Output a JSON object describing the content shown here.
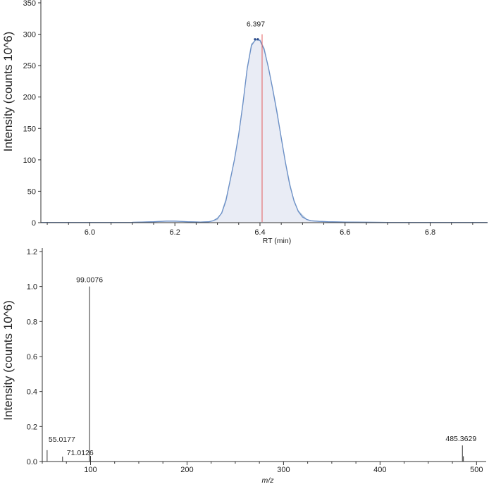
{
  "chart_data": [
    {
      "type": "area",
      "xlabel": "RT (min)",
      "ylabel": "Intensity (counts 10^6)",
      "xlim": [
        5.885,
        6.935
      ],
      "ylim": [
        0,
        350
      ],
      "x_ticks": [
        "6.0",
        "6.2",
        "6.4",
        "6.6",
        "6.8"
      ],
      "y_ticks": [
        "0",
        "50",
        "100",
        "150",
        "200",
        "250",
        "300",
        "350"
      ],
      "peak_label": "6.397",
      "peak_marker_x": 6.405,
      "colors": {
        "fill": "#e9ecf5",
        "raw": "#a9c0d8",
        "fit": "#6b8fc6",
        "marker": "#e35b5b"
      },
      "series": [
        {
          "x": [
            5.885,
            6.0,
            6.1,
            6.15,
            6.18,
            6.2,
            6.23,
            6.26,
            6.28,
            6.29,
            6.3,
            6.31,
            6.32,
            6.33,
            6.34,
            6.35,
            6.36,
            6.37,
            6.38,
            6.39,
            6.4,
            6.41,
            6.42,
            6.43,
            6.44,
            6.45,
            6.46,
            6.47,
            6.48,
            6.49,
            6.5,
            6.51,
            6.52,
            6.54,
            6.56,
            6.6,
            6.7,
            6.8,
            6.935
          ],
          "y": [
            0.5,
            0.5,
            0.6,
            1.5,
            2.5,
            2.5,
            1.5,
            1.0,
            1.5,
            3,
            7,
            15,
            35,
            68,
            100,
            140,
            190,
            245,
            282,
            292,
            290,
            275,
            247,
            212,
            175,
            135,
            95,
            60,
            35,
            18,
            9,
            5,
            3,
            2,
            1.5,
            1,
            0.5,
            0.5,
            0.5
          ]
        }
      ]
    },
    {
      "type": "bar",
      "xlabel": "m/z",
      "ylabel": "Intensity (counts 10^6)",
      "xlim": [
        50,
        510
      ],
      "ylim": [
        0,
        1.22
      ],
      "x_ticks": [
        "100",
        "200",
        "300",
        "400",
        "500"
      ],
      "y_ticks": [
        "0.0",
        "0.2",
        "0.4",
        "0.6",
        "0.8",
        "1.0",
        "1.2"
      ],
      "peaks": [
        {
          "mz": 55.0177,
          "intensity": 0.065,
          "label": "55.0177"
        },
        {
          "mz": 71.0126,
          "intensity": 0.028,
          "label": "71.0126"
        },
        {
          "mz": 99.0076,
          "intensity": 1.0,
          "label": "99.0076"
        },
        {
          "mz": 100.01,
          "intensity": 0.032,
          "label": ""
        },
        {
          "mz": 485.3629,
          "intensity": 0.092,
          "label": "485.3629"
        },
        {
          "mz": 486.37,
          "intensity": 0.03,
          "label": ""
        }
      ]
    }
  ]
}
